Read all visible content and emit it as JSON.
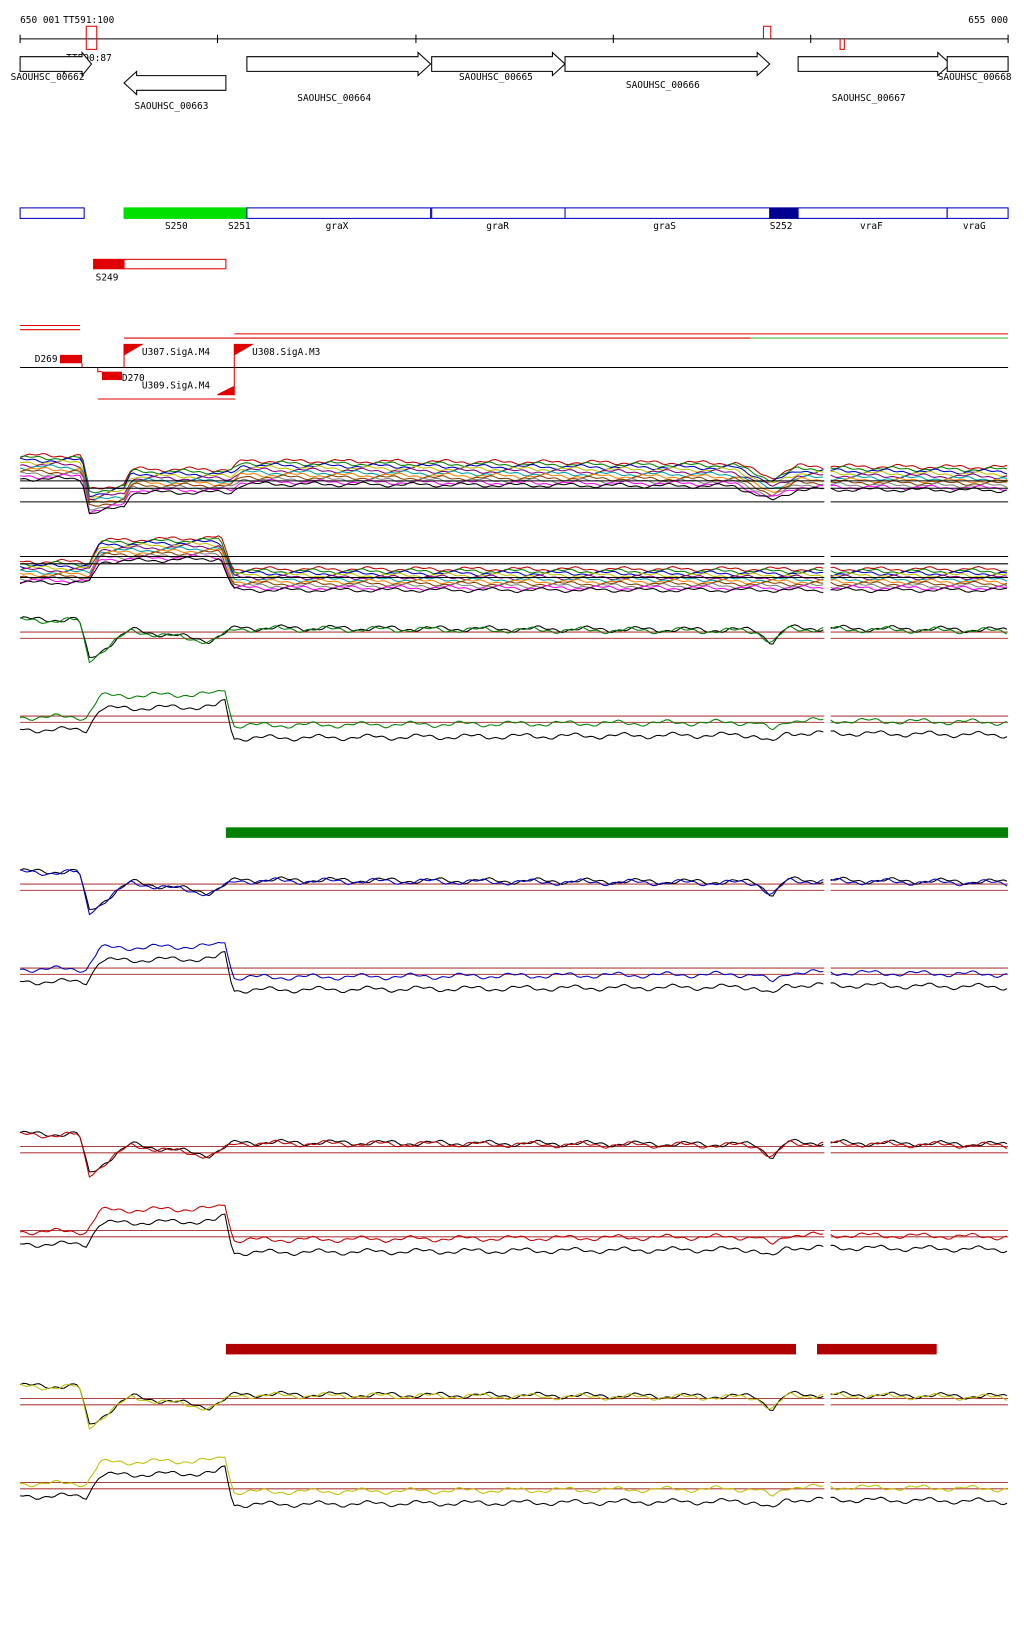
{
  "ruler": {
    "start": "650 001",
    "end": "655 000"
  },
  "terminators": [
    {
      "label": "TT591:100"
    },
    {
      "label": "TT590:87"
    }
  ],
  "genes": [
    {
      "label": "SAOUHSC_00662"
    },
    {
      "label": "SAOUHSC_00663"
    },
    {
      "label": "SAOUHSC_00664"
    },
    {
      "label": "SAOUHSC_00665"
    },
    {
      "label": "SAOUHSC_00666"
    },
    {
      "label": "SAOUHSC_00667"
    },
    {
      "label": "SAOUHSC_00668"
    }
  ],
  "segments": [
    {
      "label": "S250"
    },
    {
      "label": "S251"
    },
    {
      "label": "graX"
    },
    {
      "label": "graR"
    },
    {
      "label": "graS"
    },
    {
      "label": "S252"
    },
    {
      "label": "vraF"
    },
    {
      "label": "vraG"
    },
    {
      "label": "S249"
    }
  ],
  "features": [
    {
      "label": "D269"
    },
    {
      "label": "D270"
    },
    {
      "label": "U307.SigA.M4"
    },
    {
      "label": "U308.SigA.M3"
    },
    {
      "label": "U309.SigA.M4"
    }
  ]
}
